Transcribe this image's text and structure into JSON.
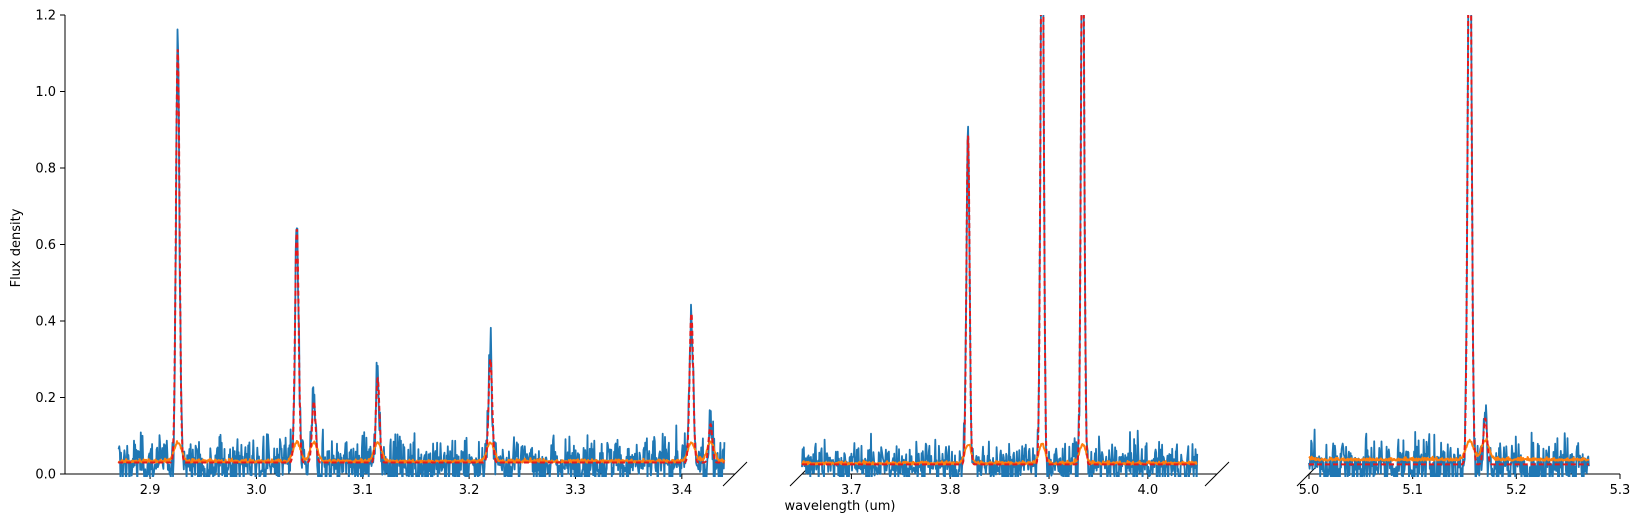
{
  "chart_data": {
    "type": "line",
    "layout": "broken-x-axis, three panels sharing y",
    "xlabel": "wavelength (um)",
    "ylabel": "Flux density",
    "ylim": [
      0.0,
      1.2
    ],
    "yticks": [
      "0.0",
      "0.2",
      "0.4",
      "0.6",
      "0.8",
      "1.0",
      "1.2"
    ],
    "grid": false,
    "legend": "none",
    "colors": {
      "data": "#1f77b4",
      "error": "#ff7f0e",
      "model": "#e41a1c"
    },
    "series_styles": [
      {
        "role": "data",
        "color": "#1f77b4",
        "style": "solid"
      },
      {
        "role": "error",
        "color": "#ff7f0e",
        "style": "solid"
      },
      {
        "role": "model",
        "color": "#e41a1c",
        "style": "dashed"
      }
    ],
    "panels": [
      {
        "xlim": [
          2.82,
          3.45
        ],
        "xticks": [
          "2.9",
          "3.0",
          "3.1",
          "3.2",
          "3.3",
          "3.4"
        ],
        "x_range": [
          2.87,
          3.44
        ],
        "continuum": 0.03,
        "error_level": 0.03,
        "noise": 0.035,
        "lines": [
          {
            "center": 2.926,
            "amplitude": 1.08,
            "sigma": 0.0017
          },
          {
            "center": 3.038,
            "amplitude": 0.61,
            "sigma": 0.0017
          },
          {
            "center": 3.054,
            "amplitude": 0.16,
            "sigma": 0.0017
          },
          {
            "center": 3.114,
            "amplitude": 0.22,
            "sigma": 0.0017
          },
          {
            "center": 3.22,
            "amplitude": 0.27,
            "sigma": 0.0017
          },
          {
            "center": 3.409,
            "amplitude": 0.39,
            "sigma": 0.0017
          },
          {
            "center": 3.427,
            "amplitude": 0.1,
            "sigma": 0.0017
          }
        ]
      },
      {
        "xlim": [
          3.65,
          4.07
        ],
        "xticks": [
          "3.7",
          "3.8",
          "3.9",
          "4.0"
        ],
        "x_range": [
          3.65,
          4.05
        ],
        "continuum": 0.025,
        "error_level": 0.025,
        "noise": 0.03,
        "lines": [
          {
            "center": 3.818,
            "amplitude": 0.86,
            "sigma": 0.0016
          },
          {
            "center": 3.893,
            "amplitude": 1.6,
            "sigma": 0.0016
          },
          {
            "center": 3.934,
            "amplitude": 1.6,
            "sigma": 0.0016
          }
        ]
      },
      {
        "xlim": [
          5.0,
          5.3
        ],
        "xticks": [
          "5.0",
          "5.1",
          "5.2",
          "5.3"
        ],
        "x_range": [
          5.0,
          5.27
        ],
        "continuum": 0.025,
        "error_level": 0.035,
        "noise": 0.035,
        "lines": [
          {
            "center": 5.155,
            "amplitude": 1.6,
            "sigma": 0.0018
          },
          {
            "center": 5.17,
            "amplitude": 0.12,
            "sigma": 0.0018
          }
        ]
      }
    ]
  }
}
